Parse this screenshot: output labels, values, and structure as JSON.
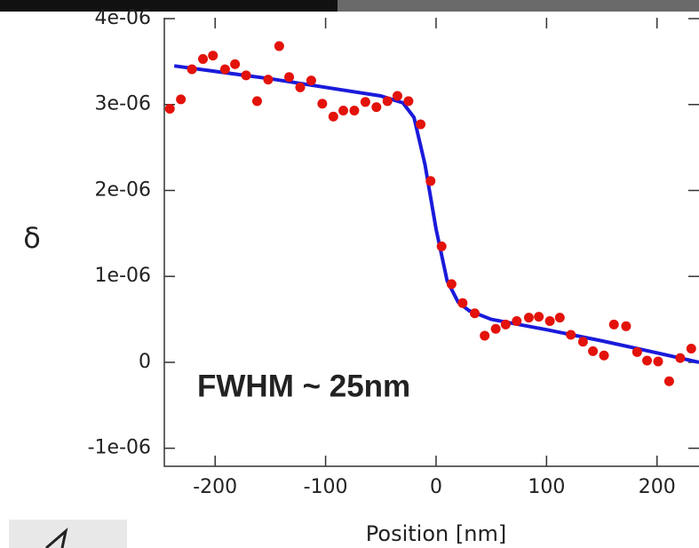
{
  "chart_data": {
    "type": "scatter",
    "xlabel": "Position [nm]",
    "ylabel": "δ",
    "annotation": "FWHM ~ 25nm",
    "xlim": [
      -246,
      238
    ],
    "ylim": [
      -1.21e-06,
      4.01e-06
    ],
    "xticks": [
      -200,
      -100,
      0,
      100,
      200
    ],
    "yticks": [
      {
        "value": -1e-06,
        "label": "-1e-06"
      },
      0,
      {
        "value": 1e-06,
        "label": "1e-06"
      },
      {
        "value": 2e-06,
        "label": "2e-06"
      },
      {
        "value": 3e-06,
        "label": "3e-06"
      },
      {
        "value": 4e-06,
        "label": "4e-06"
      }
    ],
    "series": [
      {
        "type": "scatter",
        "color": "#e3120b",
        "x": [
          -241,
          -231,
          -221,
          -211,
          -202,
          -191,
          -182,
          -172,
          -162,
          -152,
          -142,
          -133,
          -123,
          -113,
          -103,
          -93,
          -84,
          -74,
          -64,
          -54,
          -44,
          -35,
          -25,
          -14,
          -5,
          5,
          14,
          24,
          35,
          44,
          54,
          63,
          73,
          84,
          93,
          103,
          112,
          122,
          133,
          142,
          152,
          161,
          172,
          182,
          191,
          201,
          211,
          221,
          231
        ],
        "values": [
          2.95e-06,
          3.06e-06,
          3.41e-06,
          3.53e-06,
          3.57e-06,
          3.41e-06,
          3.47e-06,
          3.34e-06,
          3.04e-06,
          3.29e-06,
          3.68e-06,
          3.32e-06,
          3.2e-06,
          3.28e-06,
          3.01e-06,
          2.86e-06,
          2.93e-06,
          2.93e-06,
          3.03e-06,
          2.97e-06,
          3.04e-06,
          3.1e-06,
          3.04e-06,
          2.77e-06,
          2.11e-06,
          1.35e-06,
          9.1e-07,
          6.9e-07,
          5.7e-07,
          3.1e-07,
          3.9e-07,
          4.4e-07,
          4.8e-07,
          5.2e-07,
          5.3e-07,
          4.8e-07,
          5.2e-07,
          3.2e-07,
          2.4e-07,
          1.3e-07,
          8e-08,
          4.4e-07,
          4.2e-07,
          1.2e-07,
          2e-08,
          1e-08,
          -2.2e-07,
          5e-08,
          1.6e-07
        ]
      },
      {
        "type": "line",
        "color": "#1a1adb",
        "x": [
          -237,
          -150,
          -50,
          -30,
          -20,
          -10,
          0,
          10,
          20,
          30,
          50,
          100,
          150,
          200,
          238
        ],
        "values": [
          3.45e-06,
          3.3e-06,
          3.1e-06,
          3.02e-06,
          2.85e-06,
          2.3e-06,
          1.55e-06,
          9.5e-07,
          7e-07,
          6e-07,
          5e-07,
          3.8e-07,
          2.5e-07,
          1.1e-07,
          0
        ]
      }
    ]
  }
}
